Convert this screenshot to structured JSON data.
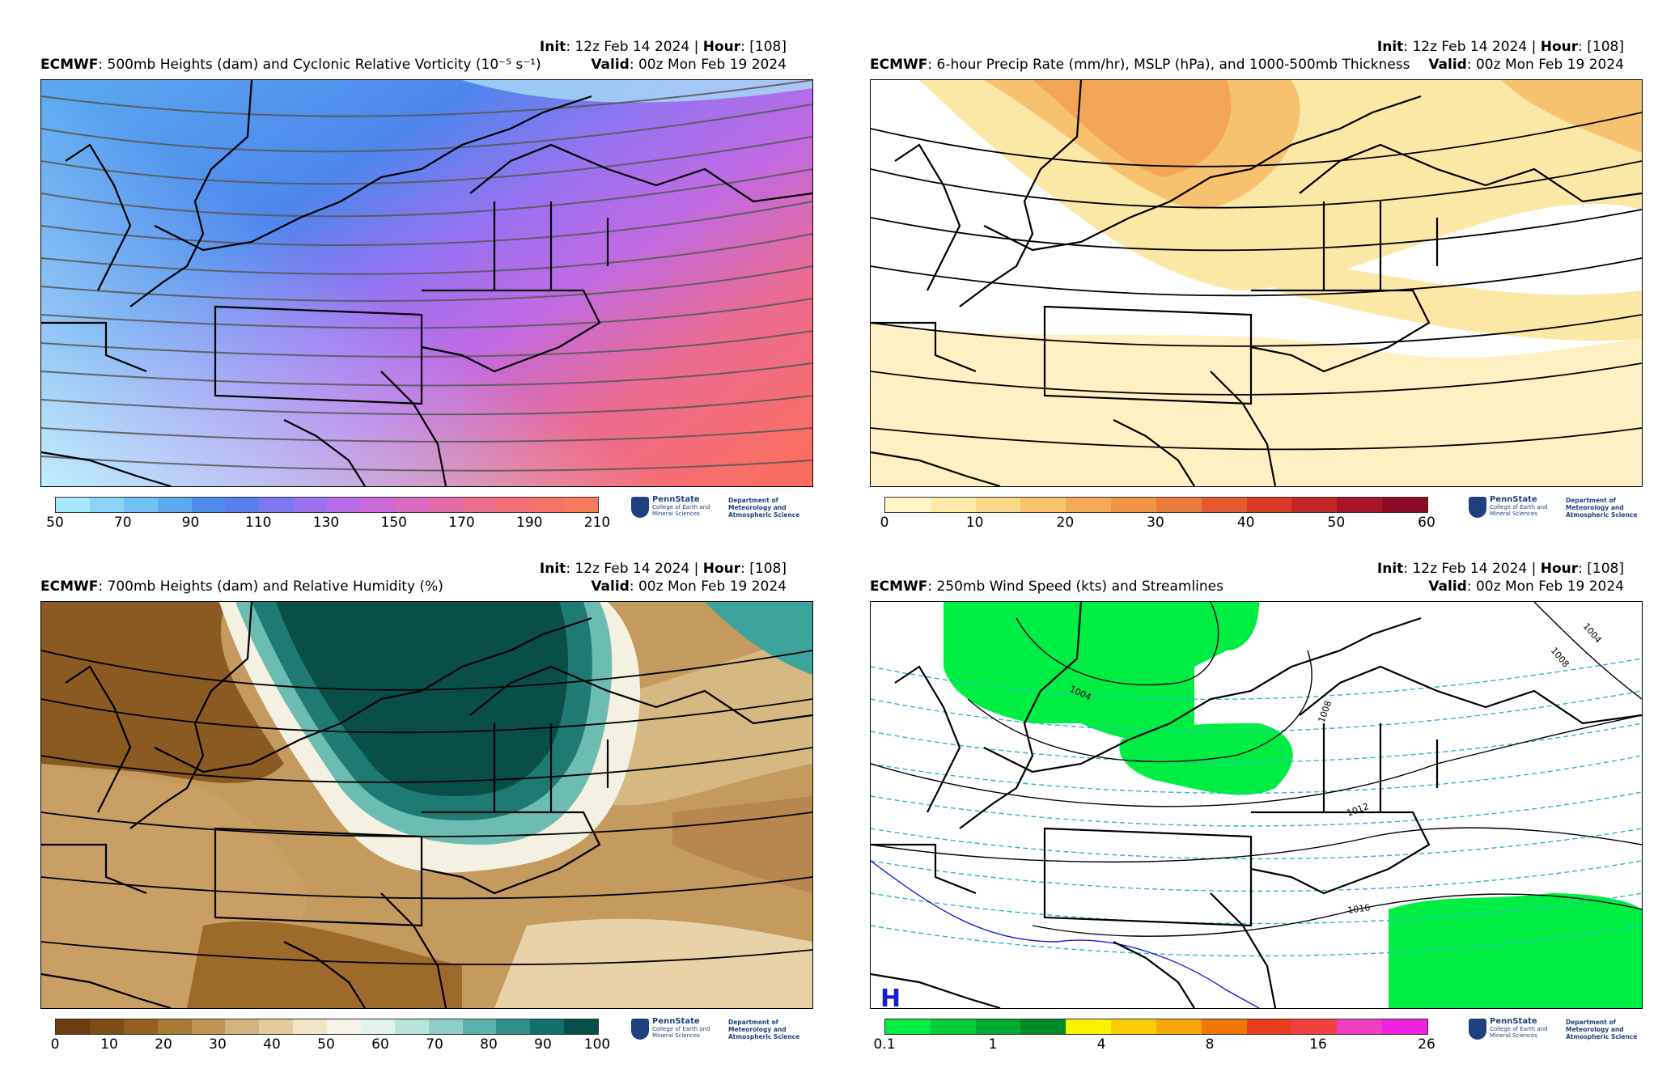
{
  "panels": [
    {
      "model": "ECMWF",
      "title": ": 500mb Heights (dam) and Cyclonic Relative Vorticity (10⁻⁵ s⁻¹)",
      "init_label": "Init",
      "init_value": ": 12z Feb 14 2024 | ",
      "hour_label": "Hour",
      "hour_value": ": [108]",
      "valid_label": "Valid",
      "valid_value": ": 00z Mon Feb 19 2024",
      "colorbar": {
        "ticks": [
          "50",
          "70",
          "90",
          "110",
          "130",
          "150",
          "170",
          "190",
          "210"
        ],
        "colors": [
          "#a8e6fb",
          "#8ad4f8",
          "#72c0f4",
          "#5eaaf0",
          "#4d8eec",
          "#5a7ef0",
          "#7a78f2",
          "#9a72f0",
          "#b76ce8",
          "#c96ad8",
          "#d86ac2",
          "#e46aa8",
          "#ee6c8e",
          "#f46e78",
          "#f8726a",
          "#fa7a60"
        ]
      },
      "icon": "vorticity-streamlines-map"
    },
    {
      "model": "ECMWF",
      "title": ": 6-hour Precip Rate (mm/hr), MSLP (hPa), and 1000-500mb Thickness",
      "init_label": "Init",
      "init_value": ": 12z Feb 14 2024 | ",
      "hour_label": "Hour",
      "hour_value": ": [108]",
      "valid_label": "Valid",
      "valid_value": ": 00z Mon Feb 19 2024",
      "colorbar": {
        "ticks": [
          "0",
          "10",
          "20",
          "30",
          "40",
          "50",
          "60"
        ],
        "colors": [
          "#fff6c8",
          "#fde9a8",
          "#fbd98a",
          "#f8c56c",
          "#f4ac54",
          "#f09446",
          "#ec7a3c",
          "#e45a30",
          "#d83a2a",
          "#c42628",
          "#aa1428",
          "#8c0a26"
        ]
      },
      "icon": "precip-mslp-map"
    },
    {
      "model": "ECMWF",
      "title": ": 700mb Heights (dam) and Relative Humidity (%)",
      "init_label": "Init",
      "init_value": ": 12z Feb 14 2024 | ",
      "hour_label": "Hour",
      "hour_value": ": [108]",
      "valid_label": "Valid",
      "valid_value": ": 00z Mon Feb 19 2024",
      "colorbar": {
        "ticks": [
          "0",
          "10",
          "20",
          "30",
          "40",
          "50",
          "60",
          "70",
          "80",
          "90",
          "100"
        ],
        "colors": [
          "#6b3d12",
          "#7e4c18",
          "#93601f",
          "#a87a36",
          "#be9456",
          "#d4b27c",
          "#e4cb9e",
          "#f2e4c6",
          "#f6f3e8",
          "#e0f2ee",
          "#b8e4dc",
          "#8ed0c6",
          "#5cb3aa",
          "#2e8e88",
          "#11706a",
          "#084e48"
        ]
      },
      "icon": "relative-humidity-map"
    },
    {
      "model": "ECMWF",
      "title": ": 250mb Wind Speed (kts) and Streamlines",
      "init_label": "Init",
      "init_value": ": 12z Feb 14 2024 | ",
      "hour_label": "Hour",
      "hour_value": ": [108]",
      "valid_label": "Valid",
      "valid_value": ": 00z Mon Feb 19 2024",
      "colorbar": {
        "ticks": [
          "0.1",
          "1",
          "4",
          "8",
          "16",
          "26"
        ],
        "colors": [
          "#00ee44",
          "#00cc3a",
          "#00aa30",
          "#008a28",
          "#f8f400",
          "#f8cc00",
          "#f8a800",
          "#f07800",
          "#e83c1c",
          "#f04040",
          "#f040c0",
          "#f022e0"
        ]
      },
      "icon": "wind-speed-map",
      "isobar_labels": [
        "1004",
        "1008",
        "1008",
        "1012",
        "1016",
        "1004"
      ],
      "high_marker": "H"
    }
  ],
  "logo": {
    "org": "PennState",
    "sub": "College of Earth and Mineral Sciences",
    "dept": "Department of Meteorology and Atmospheric Science"
  }
}
